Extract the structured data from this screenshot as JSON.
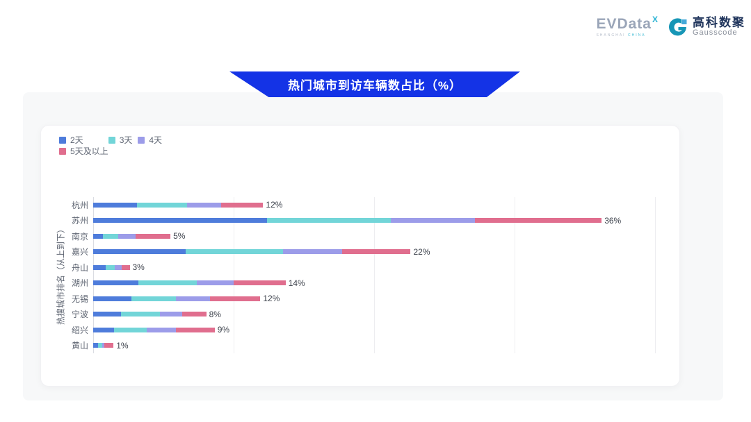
{
  "logo": {
    "evdata_text": "EVData",
    "evdata_sup": "X",
    "evdata_sub_gray": "SHANGHAI ",
    "evdata_sub_teal": "CHINA",
    "gauss_cn": "高科数聚",
    "gauss_en": "Gausscode",
    "colors": {
      "evdata_gray": "#9aa5b8",
      "evdata_teal": "#2bb3d4",
      "gauss_navy": "#20355c",
      "gauss_teal": "#1796b6",
      "gauss_lightblue": "#45a9d9"
    }
  },
  "banner": {
    "title": "热门城市到访车辆数占比（%）",
    "bg": "#1433e6"
  },
  "chart_data": {
    "type": "bar",
    "orientation": "horizontal-stacked",
    "title": "热门城市到访车辆数占比（%）",
    "ylabel": "热搜城市排名（从上到下）",
    "xlabel": "",
    "categories": [
      "杭州",
      "苏州",
      "南京",
      "嘉兴",
      "舟山",
      "湖州",
      "无锡",
      "宁波",
      "绍兴",
      "黄山"
    ],
    "series": [
      {
        "name": "2天",
        "color": "#4e7cdb",
        "values": [
          3.1,
          12.4,
          0.7,
          6.6,
          0.9,
          3.2,
          2.7,
          2.0,
          1.5,
          0.35
        ]
      },
      {
        "name": "3天",
        "color": "#72d5d8",
        "values": [
          3.6,
          8.8,
          1.1,
          6.9,
          0.65,
          4.2,
          3.2,
          2.75,
          2.3,
          0.3
        ]
      },
      {
        "name": "4天",
        "color": "#9c9ce9",
        "values": [
          2.4,
          6.0,
          1.2,
          4.2,
          0.5,
          2.6,
          2.4,
          1.6,
          2.1,
          0.15
        ]
      },
      {
        "name": "5天及以上",
        "color": "#e06e8e",
        "values": [
          3.0,
          9.0,
          2.5,
          4.9,
          0.55,
          3.7,
          3.6,
          1.7,
          2.75,
          0.65
        ]
      }
    ],
    "total_labels": [
      "12%",
      "36%",
      "5%",
      "22%",
      "3%",
      "14%",
      "12%",
      "8%",
      "9%",
      "1%"
    ],
    "xlim": [
      0,
      41
    ],
    "xticks": [
      10,
      20,
      30,
      40
    ],
    "grid": true,
    "legend_position": "top-left"
  }
}
